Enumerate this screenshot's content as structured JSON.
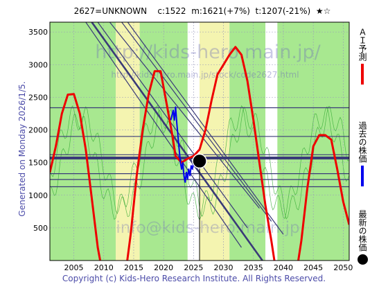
{
  "header": {
    "title": "2627=UNKNOWN    c:1522  m:1621(+7%)  t:1207(-21%)  ★☆"
  },
  "side_note": "Generated on Monday 2026/1/5.",
  "watermark": {
    "url_large": "http://kids-hero.main.jp/",
    "url_small": "http://kids-hero.main.jp/stock/code2627.html",
    "email": "info@kids-hero.main.jp"
  },
  "footer": "Copyright (c) Kids-Hero Research Institute. All Rights Reserved.",
  "legend": {
    "ai": "ＡＩ予測",
    "past": "過去の株価",
    "latest": "最新の株価"
  },
  "colors": {
    "ai_forecast": "#ee0000",
    "past_price": "#0000ee",
    "latest_price": "#000000",
    "channel_lines": "#3a3a78",
    "band_green": "#a8e890",
    "band_yellow": "#f4f4b0",
    "inner_green": "#33aa33",
    "axis_text": "#4b4ba8"
  },
  "chart_data": {
    "type": "line",
    "xlim": [
      2001,
      2051
    ],
    "ylim": [
      0,
      3650
    ],
    "x_ticks": [
      2005,
      2010,
      2015,
      2020,
      2025,
      2030,
      2035,
      2040,
      2045,
      2050
    ],
    "y_ticks": [
      500,
      1000,
      1500,
      2000,
      2500,
      3000,
      3500
    ],
    "grid": true,
    "series": [
      {
        "name": "ＡＩ予測",
        "points": [
          [
            2001,
            1350
          ],
          [
            2002,
            1750
          ],
          [
            2003,
            2250
          ],
          [
            2004,
            2540
          ],
          [
            2005,
            2550
          ],
          [
            2006,
            2250
          ],
          [
            2007,
            1700
          ],
          [
            2008,
            950
          ],
          [
            2009,
            200
          ],
          [
            2010,
            -300
          ],
          [
            2013.5,
            -300
          ],
          [
            2014.5,
            400
          ],
          [
            2015.5,
            1300
          ],
          [
            2016.5,
            2000
          ],
          [
            2017.5,
            2550
          ],
          [
            2018.5,
            2900
          ],
          [
            2019.5,
            2900
          ],
          [
            2020.5,
            2400
          ],
          [
            2021.5,
            1900
          ],
          [
            2022,
            1600
          ],
          [
            2023,
            1500
          ],
          [
            2024,
            1560
          ],
          [
            2025,
            1600
          ],
          [
            2026,
            1700
          ],
          [
            2027,
            2000
          ],
          [
            2028,
            2450
          ],
          [
            2029,
            2850
          ],
          [
            2030,
            3000
          ],
          [
            2031,
            3150
          ],
          [
            2032,
            3270
          ],
          [
            2033,
            3150
          ],
          [
            2034,
            2750
          ],
          [
            2035,
            2150
          ],
          [
            2036,
            1500
          ],
          [
            2037,
            850
          ],
          [
            2038,
            300
          ],
          [
            2039,
            -300
          ],
          [
            2042,
            -300
          ],
          [
            2043,
            300
          ],
          [
            2044,
            1100
          ],
          [
            2045,
            1750
          ],
          [
            2046,
            1920
          ],
          [
            2047,
            1920
          ],
          [
            2048,
            1850
          ],
          [
            2049,
            1400
          ],
          [
            2050,
            900
          ],
          [
            2051,
            550
          ]
        ]
      },
      {
        "name": "過去の株価",
        "points": [
          [
            2021.2,
            2150
          ],
          [
            2021.6,
            2300
          ],
          [
            2021.8,
            2150
          ],
          [
            2022.0,
            2350
          ],
          [
            2022.2,
            2100
          ],
          [
            2022.4,
            1900
          ],
          [
            2022.6,
            1700
          ],
          [
            2022.8,
            1500
          ],
          [
            2023.0,
            1400
          ],
          [
            2023.2,
            1500
          ],
          [
            2023.4,
            1300
          ],
          [
            2023.6,
            1200
          ],
          [
            2023.8,
            1350
          ],
          [
            2024.0,
            1250
          ],
          [
            2024.2,
            1400
          ],
          [
            2024.4,
            1300
          ],
          [
            2024.6,
            1450
          ],
          [
            2024.8,
            1400
          ],
          [
            2025.0,
            1500
          ],
          [
            2025.2,
            1450
          ],
          [
            2025.5,
            1500
          ]
        ]
      }
    ],
    "latest_point": {
      "x": 2026.0,
      "y": 1522
    },
    "horizontal_levels": [
      1130,
      1240,
      1330,
      1560,
      1580,
      1620,
      1900,
      2340
    ],
    "channel_lines": [
      [
        [
          2008,
          3650
        ],
        [
          2036.5,
          0
        ]
      ],
      [
        [
          2011,
          3650
        ],
        [
          2036,
          800
        ]
      ],
      [
        [
          2013,
          3650
        ],
        [
          2038,
          600
        ]
      ],
      [
        [
          2007,
          3650
        ],
        [
          2033,
          200
        ]
      ],
      [
        [
          2009,
          3650
        ],
        [
          2034,
          500
        ]
      ],
      [
        [
          2014,
          3650
        ],
        [
          2040,
          400
        ]
      ]
    ],
    "band_regions": [
      {
        "from": 2001,
        "to": 2012,
        "type": "green"
      },
      {
        "from": 2012,
        "to": 2016,
        "type": "yellow"
      },
      {
        "from": 2016,
        "to": 2024,
        "type": "green"
      },
      {
        "from": 2026,
        "to": 2031,
        "type": "yellow"
      },
      {
        "from": 2031,
        "to": 2037,
        "type": "green"
      },
      {
        "from": 2039,
        "to": 2051,
        "type": "green"
      }
    ]
  }
}
